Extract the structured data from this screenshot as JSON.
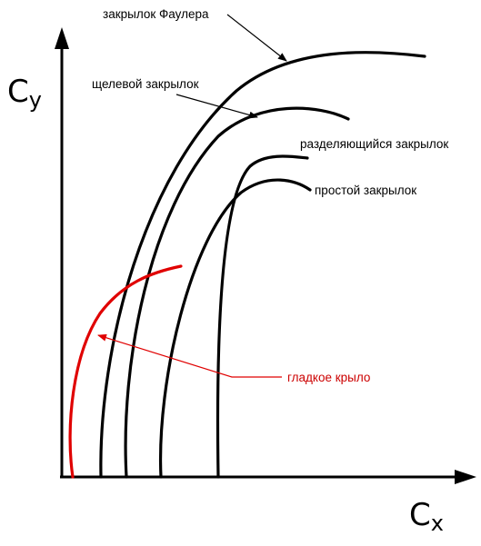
{
  "axes": {
    "y_main": "C",
    "y_sub": "y",
    "x_main": "C",
    "x_sub": "x"
  },
  "labels": {
    "fowler": "закрылок Фаулера",
    "slotted": "щелевой закрылок",
    "split": "разделяющийся закрылок",
    "plain": "простой закрылок",
    "smooth": "гладкое крыло"
  },
  "colors": {
    "axis": "#000000",
    "curve": "#000000",
    "smooth_wing": "#e00000",
    "smooth_label": "#cc0000",
    "pointer": "#000000",
    "smooth_pointer": "#e00000"
  }
}
